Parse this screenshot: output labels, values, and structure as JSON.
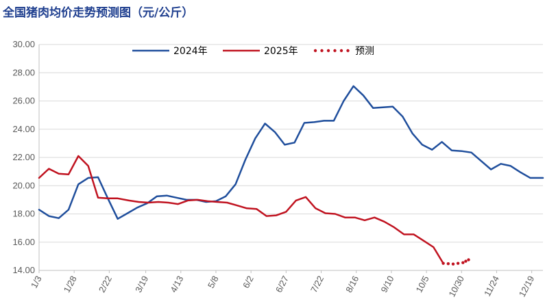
{
  "chart_data": {
    "type": "line",
    "title": "全国猪肉均价走势预测图（元/公斤）",
    "xlabel": "",
    "ylabel": "",
    "ylim": [
      14,
      30
    ],
    "y_ticks": [
      "30.00",
      "28.00",
      "26.00",
      "24.00",
      "22.00",
      "20.00",
      "18.00",
      "16.00",
      "14.00"
    ],
    "x_tick_labels": [
      "1/3",
      "1/28",
      "2/22",
      "3/19",
      "4/13",
      "5/8",
      "6/2",
      "6/27",
      "7/22",
      "8/16",
      "9/10",
      "10/5",
      "10/30",
      "11/24",
      "12/19"
    ],
    "x_range": [
      "1/3",
      "12/27"
    ],
    "grid": "horizontal",
    "legend_position": "top",
    "series": [
      {
        "name": "2024年",
        "color": "#1f4e9c",
        "style": "solid",
        "points": [
          [
            "1/3",
            18.3
          ],
          [
            "1/10",
            17.85
          ],
          [
            "1/17",
            17.7
          ],
          [
            "1/24",
            18.3
          ],
          [
            "1/31",
            20.1
          ],
          [
            "2/7",
            20.55
          ],
          [
            "2/14",
            20.6
          ],
          [
            "2/21",
            19.1
          ],
          [
            "2/28",
            17.65
          ],
          [
            "3/6",
            18.05
          ],
          [
            "3/13",
            18.45
          ],
          [
            "3/20",
            18.75
          ],
          [
            "3/27",
            19.25
          ],
          [
            "4/3",
            19.3
          ],
          [
            "4/10",
            19.15
          ],
          [
            "4/17",
            19.0
          ],
          [
            "4/24",
            19.0
          ],
          [
            "5/1",
            18.85
          ],
          [
            "5/8",
            18.9
          ],
          [
            "5/15",
            19.25
          ],
          [
            "5/22",
            20.1
          ],
          [
            "5/29",
            21.85
          ],
          [
            "6/5",
            23.35
          ],
          [
            "6/12",
            24.4
          ],
          [
            "6/19",
            23.8
          ],
          [
            "6/26",
            22.9
          ],
          [
            "7/3",
            23.05
          ],
          [
            "7/10",
            24.45
          ],
          [
            "7/17",
            24.5
          ],
          [
            "7/24",
            24.6
          ],
          [
            "7/31",
            24.6
          ],
          [
            "8/7",
            26.0
          ],
          [
            "8/14",
            27.05
          ],
          [
            "8/21",
            26.4
          ],
          [
            "8/28",
            25.5
          ],
          [
            "9/4",
            25.55
          ],
          [
            "9/11",
            25.6
          ],
          [
            "9/18",
            24.9
          ],
          [
            "9/25",
            23.7
          ],
          [
            "10/2",
            22.9
          ],
          [
            "10/9",
            22.55
          ],
          [
            "10/16",
            23.1
          ],
          [
            "10/23",
            22.5
          ],
          [
            "10/30",
            22.45
          ],
          [
            "11/6",
            22.35
          ],
          [
            "11/13",
            21.75
          ],
          [
            "11/20",
            21.15
          ],
          [
            "11/27",
            21.55
          ],
          [
            "12/4",
            21.4
          ],
          [
            "12/11",
            20.95
          ],
          [
            "12/18",
            20.55
          ],
          [
            "12/27",
            20.55
          ]
        ]
      },
      {
        "name": "2025年",
        "color": "#c0121f",
        "style": "solid",
        "points": [
          [
            "1/3",
            20.55
          ],
          [
            "1/10",
            21.2
          ],
          [
            "1/17",
            20.85
          ],
          [
            "1/24",
            20.8
          ],
          [
            "1/31",
            22.1
          ],
          [
            "2/7",
            21.4
          ],
          [
            "2/14",
            19.15
          ],
          [
            "2/21",
            19.1
          ],
          [
            "2/28",
            19.1
          ],
          [
            "3/7",
            18.95
          ],
          [
            "3/14",
            18.85
          ],
          [
            "3/21",
            18.8
          ],
          [
            "3/28",
            18.85
          ],
          [
            "4/4",
            18.8
          ],
          [
            "4/11",
            18.7
          ],
          [
            "4/18",
            18.95
          ],
          [
            "4/25",
            19.0
          ],
          [
            "5/2",
            18.9
          ],
          [
            "5/9",
            18.85
          ],
          [
            "5/16",
            18.8
          ],
          [
            "5/23",
            18.6
          ],
          [
            "5/30",
            18.4
          ],
          [
            "6/6",
            18.35
          ],
          [
            "6/13",
            17.85
          ],
          [
            "6/20",
            17.9
          ],
          [
            "6/27",
            18.15
          ],
          [
            "7/4",
            18.95
          ],
          [
            "7/11",
            19.2
          ],
          [
            "7/18",
            18.4
          ],
          [
            "7/25",
            18.05
          ],
          [
            "8/1",
            18.0
          ],
          [
            "8/8",
            17.75
          ],
          [
            "8/15",
            17.75
          ],
          [
            "8/22",
            17.55
          ],
          [
            "8/29",
            17.75
          ],
          [
            "9/5",
            17.45
          ],
          [
            "9/12",
            17.05
          ],
          [
            "9/19",
            16.55
          ],
          [
            "9/26",
            16.55
          ],
          [
            "10/3",
            16.1
          ],
          [
            "10/10",
            15.65
          ],
          [
            "10/17",
            14.5
          ]
        ]
      },
      {
        "name": "预测",
        "color": "#c0121f",
        "style": "dotted",
        "points": [
          [
            "10/17",
            14.5
          ],
          [
            "10/24",
            14.45
          ],
          [
            "10/31",
            14.55
          ],
          [
            "11/4",
            14.75
          ]
        ]
      }
    ]
  }
}
